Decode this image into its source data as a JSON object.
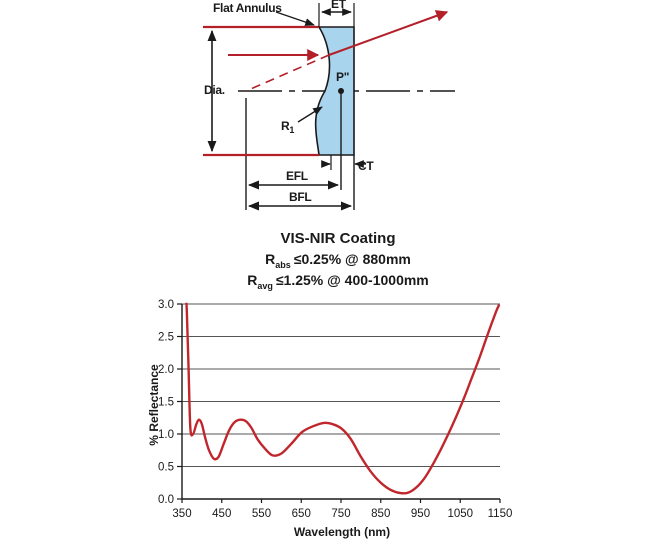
{
  "diagram": {
    "labels": {
      "flat_annulus": "Flat Annulus",
      "et": "ET",
      "dia": "Dia.",
      "p": "P\"",
      "r1_main": "R",
      "r1_sub": "1",
      "efl": "EFL",
      "bfl": "BFL",
      "ct": "CT"
    },
    "colors": {
      "ray": "#b3202a",
      "lens_fill": "#a9d4ee",
      "line": "#1a1a1a"
    }
  },
  "coating": {
    "title": "VIS-NIR Coating",
    "line1": {
      "symbol": "R",
      "sub": "abs",
      "text": "≤0.25% @ 880mm"
    },
    "line2": {
      "symbol": "R",
      "sub": "avg",
      "text": "≤1.25% @ 400-1000mm"
    }
  },
  "chart_data": {
    "type": "line",
    "xlabel": "Wavelength (nm)",
    "ylabel": "% Reflectance",
    "xlim": [
      350,
      1150
    ],
    "ylim": [
      0,
      3.0
    ],
    "x_ticks": [
      "350",
      "450",
      "550",
      "650",
      "750",
      "850",
      "950",
      "1050",
      "1150"
    ],
    "y_ticks": [
      "0.0",
      "0.5",
      "1.0",
      "1.5",
      "2.0",
      "2.5",
      "3.0"
    ],
    "grid": "horizontal",
    "line_color": "#c0272d",
    "series": [
      {
        "x": [
          361,
          362,
          366,
          371,
          378,
          386,
          393,
          400,
          408,
          418,
          430,
          442,
          455,
          468,
          482,
          496,
          510,
          524,
          540,
          558,
          578,
          600,
          625,
          652,
          680,
          707,
          730,
          752,
          775,
          800,
          825,
          850,
          875,
          900,
          920,
          940,
          960,
          980,
          1000,
          1020,
          1040,
          1060,
          1080,
          1100,
          1120,
          1140,
          1148
        ],
        "y": [
          3.02,
          2.9,
          2.1,
          1.1,
          1.0,
          1.15,
          1.22,
          1.15,
          0.95,
          0.75,
          0.62,
          0.65,
          0.85,
          1.05,
          1.18,
          1.22,
          1.2,
          1.1,
          0.92,
          0.78,
          0.67,
          0.7,
          0.85,
          1.03,
          1.12,
          1.17,
          1.15,
          1.08,
          0.92,
          0.65,
          0.42,
          0.25,
          0.14,
          0.09,
          0.1,
          0.18,
          0.32,
          0.52,
          0.75,
          1.0,
          1.27,
          1.56,
          1.88,
          2.2,
          2.55,
          2.88,
          2.99
        ]
      }
    ]
  }
}
